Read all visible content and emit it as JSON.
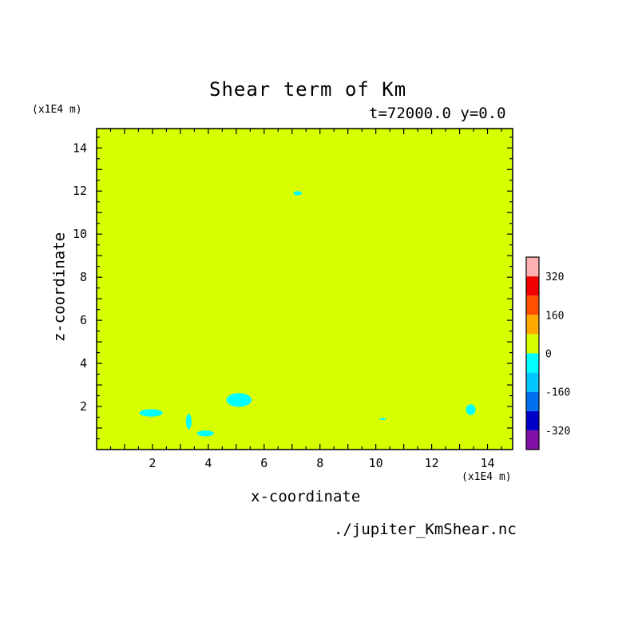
{
  "chart_data": {
    "type": "heatmap",
    "title": "Shear term of Km",
    "subtitle": "t=72000.0 y=0.0",
    "xlabel": "x-coordinate",
    "ylabel": "z-coordinate",
    "x_unit": "(x1E4 m)",
    "y_unit": "(x1E4 m)",
    "xlim": [
      0,
      14.9
    ],
    "ylim": [
      0,
      14.9
    ],
    "x_ticks": [
      2,
      4,
      6,
      8,
      10,
      12,
      14
    ],
    "y_ticks": [
      2,
      4,
      6,
      8,
      10,
      12,
      14
    ],
    "background_value_band": "0 to 80",
    "background_color": "#d8ff00",
    "contour_levels": [
      -400,
      -320,
      -240,
      -160,
      -80,
      0,
      80,
      160,
      240,
      320,
      400
    ],
    "colorbar_labels": [
      "320",
      "160",
      "0",
      "-160",
      "-320"
    ],
    "colorbar_colors": [
      "#8010a8",
      "#0000c8",
      "#0070f0",
      "#00c8ff",
      "#00ffff",
      "#d8ff00",
      "#ffa800",
      "#ff5000",
      "#f00000",
      "#ffb0b0"
    ],
    "negative_regions": [
      {
        "x": 1.95,
        "z": 1.7,
        "rx": 0.42,
        "rz": 0.17,
        "value_band": "-80 to 0"
      },
      {
        "x": 3.3,
        "z": 1.3,
        "rx": 0.1,
        "rz": 0.35,
        "value_band": "-80 to 0"
      },
      {
        "x": 3.9,
        "z": 0.75,
        "rx": 0.3,
        "rz": 0.14,
        "value_band": "-80 to 0"
      },
      {
        "x": 5.1,
        "z": 2.3,
        "rx": 0.45,
        "rz": 0.32,
        "value_band": "-80 to 0"
      },
      {
        "x": 7.2,
        "z": 11.9,
        "rx": 0.15,
        "rz": 0.1,
        "value_band": "-80 to 0"
      },
      {
        "x": 10.25,
        "z": 1.42,
        "rx": 0.12,
        "rz": 0.05,
        "value_band": "-80 to 0"
      },
      {
        "x": 13.4,
        "z": 1.85,
        "rx": 0.17,
        "rz": 0.25,
        "value_band": "-80 to 0"
      }
    ]
  },
  "footer": {
    "filename": "./jupiter_KmShear.nc"
  }
}
